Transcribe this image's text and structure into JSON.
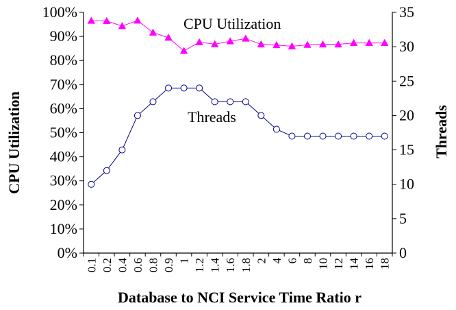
{
  "chart_data": {
    "type": "line",
    "title": "",
    "xlabel": "Database to NCI Service Time Ratio r",
    "ylabel_left": "CPU Utilization",
    "ylabel_right": "Threads",
    "categories": [
      "0.1",
      "0.2",
      "0.4",
      "0.6",
      "0.8",
      "0.9",
      "1",
      "1.2",
      "1.4",
      "1.6",
      "1.8",
      "2",
      "4",
      "6",
      "8",
      "10",
      "12",
      "14",
      "16",
      "18"
    ],
    "y_left": {
      "min": 0,
      "max": 100,
      "ticks": [
        0,
        10,
        20,
        30,
        40,
        50,
        60,
        70,
        80,
        90,
        100
      ],
      "tick_labels": [
        "0%",
        "10%",
        "20%",
        "30%",
        "40%",
        "50%",
        "60%",
        "70%",
        "80%",
        "90%",
        "100%"
      ]
    },
    "y_right": {
      "min": 0,
      "max": 35,
      "ticks": [
        0,
        5,
        10,
        15,
        20,
        25,
        30,
        35
      ],
      "tick_labels": [
        "0",
        "5",
        "10",
        "15",
        "20",
        "25",
        "30",
        "35"
      ]
    },
    "series": [
      {
        "name": "CPU Utilization",
        "axis": "left",
        "unit": "%",
        "color": "#ff00ff",
        "marker": "triangle",
        "values": [
          96.5,
          96.4,
          94.3,
          96.6,
          91.6,
          89.5,
          84.0,
          87.6,
          86.8,
          88.0,
          89.1,
          86.7,
          86.4,
          85.9,
          86.5,
          86.7,
          86.7,
          87.3,
          87.3,
          87.3
        ]
      },
      {
        "name": "Threads",
        "axis": "right",
        "unit": "",
        "color": "#00008b",
        "marker": "circle",
        "values": [
          10,
          12,
          15,
          20,
          22,
          24,
          24,
          24,
          22,
          22,
          22,
          20,
          18,
          17,
          17,
          17,
          17,
          17,
          17,
          17
        ]
      }
    ],
    "annotations": [
      {
        "series": "CPU Utilization",
        "text": "CPU Utilization"
      },
      {
        "series": "Threads",
        "text": "Threads"
      }
    ]
  }
}
